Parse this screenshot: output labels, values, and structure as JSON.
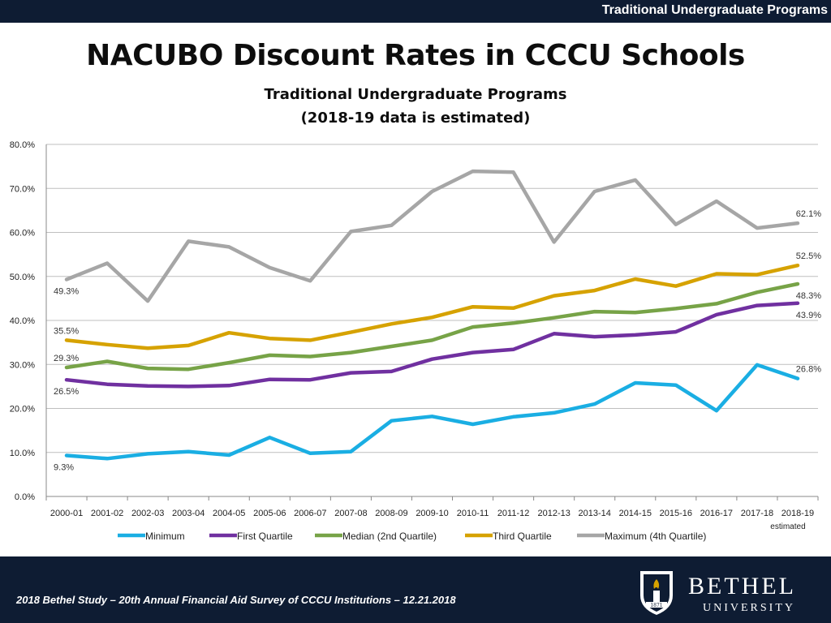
{
  "header": {
    "banner": "Traditional Undergraduate Programs"
  },
  "titles": {
    "title": "NACUBO Discount Rates in CCCU Schools",
    "subtitle1": "Traditional Undergraduate Programs",
    "subtitle2": "(2018-19 data is estimated)"
  },
  "footer": {
    "text": "2018 Bethel Study – 20th Annual Financial Aid Survey of CCCU Institutions – 12.21.2018",
    "logo_name": "BETHEL",
    "logo_sub": "UNIVERSITY",
    "logo_year": "1871"
  },
  "colors": {
    "banner": "#0e1c33",
    "Minimum": "#1aaee3",
    "First Quartile": "#7030a0",
    "Median (2nd Quartile)": "#77a347",
    "Third Quartile": "#d6a200",
    "Maximum (4th Quartile)": "#a6a6a6"
  },
  "chart_data": {
    "type": "line",
    "categories": [
      "2000-01",
      "2001-02",
      "2002-03",
      "2003-04",
      "2004-05",
      "2005-06",
      "2006-07",
      "2007-08",
      "2008-09",
      "2009-10",
      "2010-11",
      "2011-12",
      "2012-13",
      "2013-14",
      "2014-15",
      "2015-16",
      "2016-17",
      "2017-18",
      "2018-19"
    ],
    "category_note": "estimated",
    "ylim": [
      0,
      80
    ],
    "yticks": [
      "0.0%",
      "10.0%",
      "20.0%",
      "30.0%",
      "40.0%",
      "50.0%",
      "60.0%",
      "70.0%",
      "80.0%"
    ],
    "grid": true,
    "legend_position": "bottom",
    "series": [
      {
        "name": "Minimum",
        "values": [
          9.3,
          8.6,
          9.7,
          10.2,
          9.4,
          13.4,
          9.8,
          10.2,
          17.2,
          18.2,
          16.4,
          18.1,
          19.0,
          21.0,
          25.8,
          25.3,
          19.5,
          29.9,
          26.8
        ]
      },
      {
        "name": "First Quartile",
        "values": [
          26.5,
          25.5,
          25.1,
          25.0,
          25.2,
          26.6,
          26.5,
          28.1,
          28.4,
          31.2,
          32.7,
          33.4,
          37.0,
          36.3,
          36.7,
          37.4,
          41.3,
          43.4,
          43.9
        ]
      },
      {
        "name": "Median (2nd Quartile)",
        "values": [
          29.3,
          30.7,
          29.1,
          28.9,
          30.4,
          32.1,
          31.8,
          32.7,
          34.1,
          35.5,
          38.5,
          39.4,
          40.6,
          42.0,
          41.8,
          42.7,
          43.8,
          46.4,
          48.3
        ]
      },
      {
        "name": "Third Quartile",
        "values": [
          35.5,
          34.5,
          33.7,
          34.3,
          37.2,
          35.9,
          35.5,
          37.3,
          39.2,
          40.7,
          43.1,
          42.8,
          45.6,
          46.8,
          49.4,
          47.8,
          50.6,
          50.4,
          52.5
        ]
      },
      {
        "name": "Maximum (4th Quartile)",
        "values": [
          49.3,
          53.0,
          44.4,
          58.0,
          56.7,
          52.0,
          49.0,
          60.2,
          61.6,
          69.3,
          73.9,
          73.7,
          57.8,
          69.3,
          71.9,
          61.8,
          67.1,
          61.0,
          62.1
        ]
      }
    ],
    "data_labels": [
      {
        "series": 4,
        "index": 0,
        "text": "49.3%",
        "pos": "below"
      },
      {
        "series": 4,
        "index": 18,
        "text": "62.1%",
        "pos": "above"
      },
      {
        "series": 3,
        "index": 0,
        "text": "35.5%",
        "pos": "above"
      },
      {
        "series": 3,
        "index": 18,
        "text": "52.5%",
        "pos": "above"
      },
      {
        "series": 2,
        "index": 0,
        "text": "29.3%",
        "pos": "above"
      },
      {
        "series": 2,
        "index": 18,
        "text": "48.3%",
        "pos": "below"
      },
      {
        "series": 1,
        "index": 0,
        "text": "26.5%",
        "pos": "below"
      },
      {
        "series": 1,
        "index": 18,
        "text": "43.9%",
        "pos": "below"
      },
      {
        "series": 0,
        "index": 0,
        "text": "9.3%",
        "pos": "below"
      },
      {
        "series": 0,
        "index": 18,
        "text": "26.8%",
        "pos": "above"
      }
    ]
  }
}
